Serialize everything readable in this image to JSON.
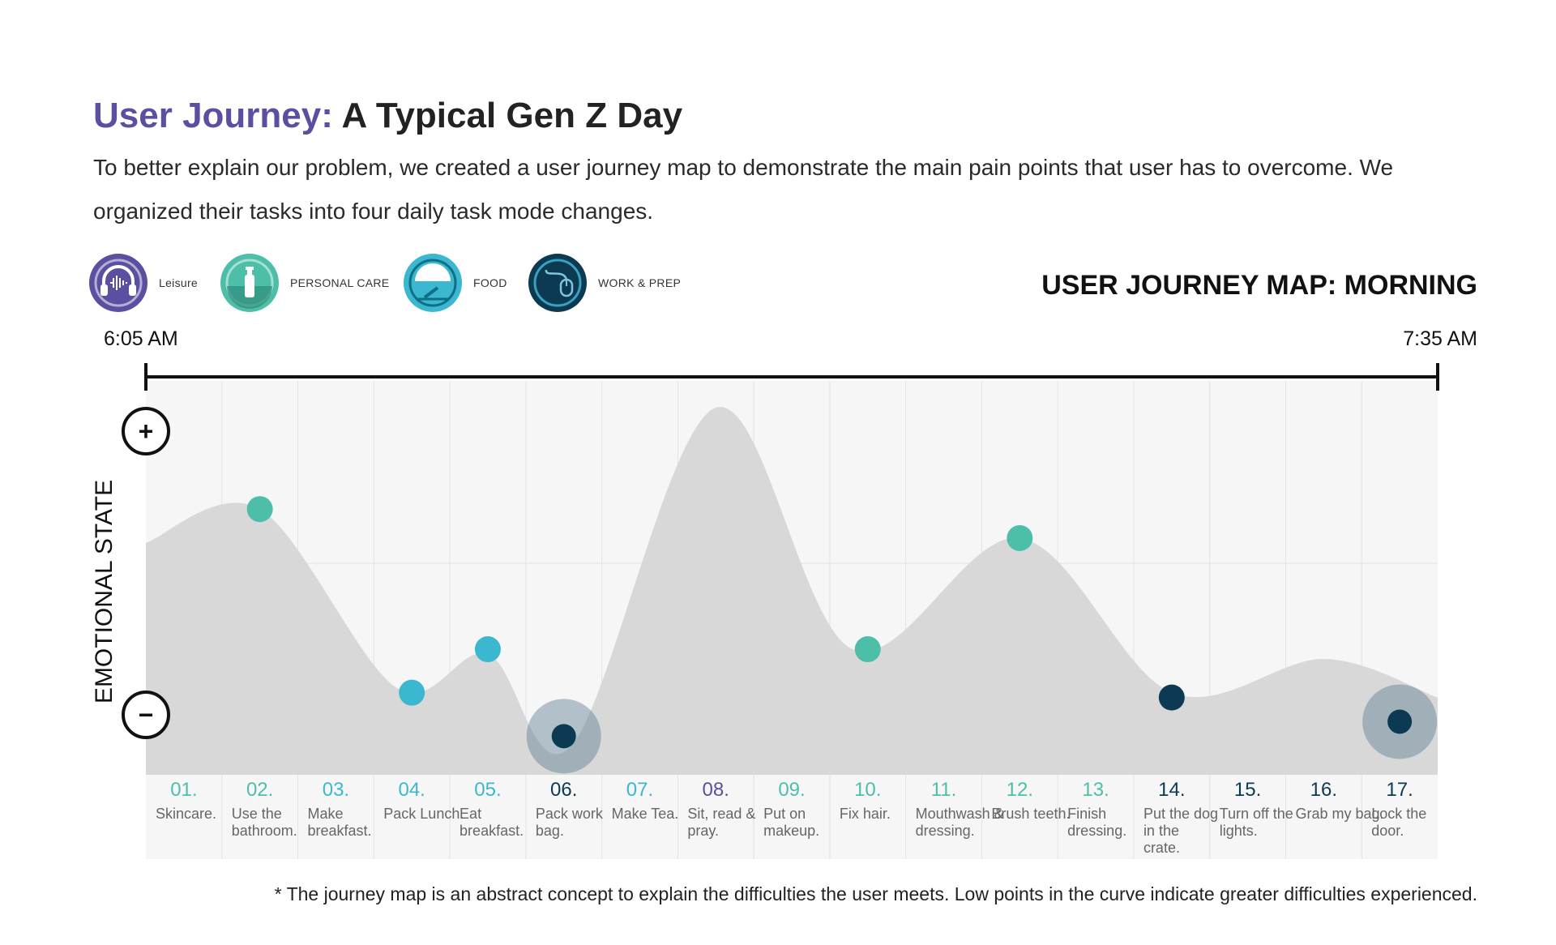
{
  "header": {
    "title_accent": "User Journey:",
    "title_rest": "A Typical Gen Z Day",
    "intro": "To better explain our problem, we created a user journey map to demonstrate the main pain points that user has to overcome. We organized their tasks into four daily task mode changes."
  },
  "legend": [
    {
      "label": "Leisure",
      "icon": "headphones-icon",
      "color": "#5a4fa0"
    },
    {
      "label": "PERSONAL CARE",
      "icon": "spray-bottle-icon",
      "color": "#4dbfa8"
    },
    {
      "label": "FOOD",
      "icon": "plate-icon",
      "color": "#3bb8d0"
    },
    {
      "label": "WORK & PREP",
      "icon": "mouse-icon",
      "color": "#0b3a52"
    }
  ],
  "map": {
    "title": "USER JOURNEY MAP: MORNING",
    "time_start": "6:05 AM",
    "time_end": "7:35 AM",
    "axis_label": "EMOTIONAL STATE",
    "plus_symbol": "+",
    "minus_symbol": "−",
    "footnote": "* The journey map is an abstract concept to explain the difficulties the user meets. Low points in the curve indicate greater difficulties experienced."
  },
  "chart_data": {
    "type": "area",
    "y_scale": "emotional state, 0 = most negative, 100 = most positive",
    "curve": [
      {
        "x": 0.0,
        "y": 48
      },
      {
        "x": 1.5,
        "y": 55
      },
      {
        "x": 3.3,
        "y": 18
      },
      {
        "x": 4.5,
        "y": 25
      },
      {
        "x": 5.6,
        "y": 6
      },
      {
        "x": 7.5,
        "y": 76
      },
      {
        "x": 9.3,
        "y": 26
      },
      {
        "x": 11.5,
        "y": 49
      },
      {
        "x": 13.5,
        "y": 17
      },
      {
        "x": 15.5,
        "y": 24
      },
      {
        "x": 17.0,
        "y": 16
      }
    ],
    "steps": [
      {
        "num": "01.",
        "text": "Skincare.",
        "category": "PERSONAL CARE",
        "y": null,
        "highlight": false
      },
      {
        "num": "02.",
        "text": "Use the bathroom.",
        "category": "PERSONAL CARE",
        "y": 55,
        "highlight": false
      },
      {
        "num": "03.",
        "text": "Make breakfast.",
        "category": "FOOD",
        "y": null,
        "highlight": false
      },
      {
        "num": "04.",
        "text": "Pack Lunch.",
        "category": "FOOD",
        "y": 17,
        "highlight": false
      },
      {
        "num": "05.",
        "text": "Eat breakfast.",
        "category": "FOOD",
        "y": 26,
        "highlight": false
      },
      {
        "num": "06.",
        "text": "Pack work bag.",
        "category": "WORK & PREP",
        "y": 8,
        "highlight": true
      },
      {
        "num": "07.",
        "text": "Make Tea.",
        "category": "FOOD",
        "y": null,
        "highlight": false
      },
      {
        "num": "08.",
        "text": "Sit, read & pray.",
        "category": "Leisure",
        "y": null,
        "highlight": false
      },
      {
        "num": "09.",
        "text": "Put on makeup.",
        "category": "PERSONAL CARE",
        "y": null,
        "highlight": false
      },
      {
        "num": "10.",
        "text": "Fix hair.",
        "category": "PERSONAL CARE",
        "y": 26,
        "highlight": false
      },
      {
        "num": "11.",
        "text": "Mouthwash & dressing.",
        "category": "PERSONAL CARE",
        "y": null,
        "highlight": false
      },
      {
        "num": "12.",
        "text": "Brush teeth.",
        "category": "PERSONAL CARE",
        "y": 49,
        "highlight": false
      },
      {
        "num": "13.",
        "text": "Finish dressing.",
        "category": "PERSONAL CARE",
        "y": null,
        "highlight": false
      },
      {
        "num": "14.",
        "text": "Put the dog in the crate.",
        "category": "WORK & PREP",
        "y": 16,
        "highlight": false
      },
      {
        "num": "15.",
        "text": "Turn off the lights.",
        "category": "WORK & PREP",
        "y": null,
        "highlight": false
      },
      {
        "num": "16.",
        "text": "Grab my bag.",
        "category": "WORK & PREP",
        "y": null,
        "highlight": false
      },
      {
        "num": "17.",
        "text": "Lock the door.",
        "category": "WORK & PREP",
        "y": 11,
        "highlight": true
      }
    ]
  }
}
